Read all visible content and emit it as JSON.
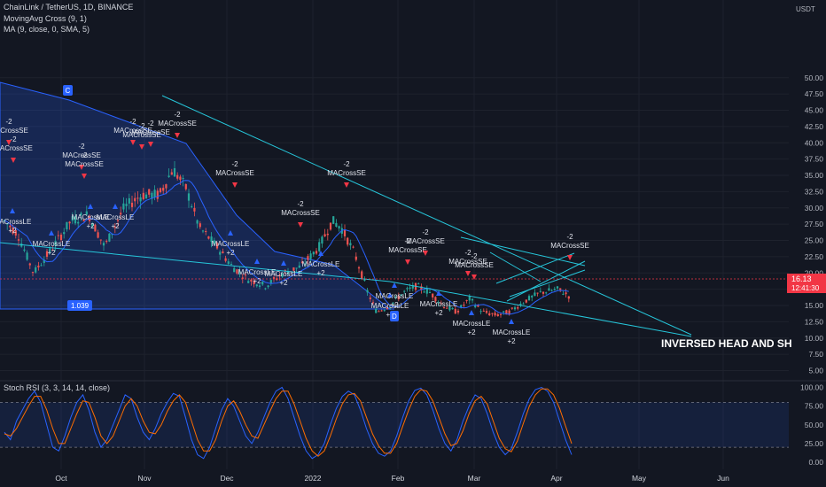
{
  "header": {
    "symbol_line": "ChainLink / TetherUS, 1D, BINANCE",
    "indicator_1": "MovingAvg Cross (9, 1)",
    "indicator_2": "MA (9, close, 0, SMA, 5)",
    "oscillator_label": "Stoch RSI (3, 3, 14, 14, close)",
    "currency": "USDT"
  },
  "price_tag": {
    "price": "16.13",
    "countdown": "12:41:30",
    "color": "#f23645"
  },
  "annotations": {
    "pattern_label": "INVERSED HEAD AND SH",
    "point_c": "C",
    "point_d": "D",
    "level_label": "1.039"
  },
  "colors": {
    "background": "#131722",
    "up_candle": "#26a69a",
    "down_candle": "#ef5350",
    "trendline": "#26c6da",
    "pattern": "#2962ff",
    "ma_line": "#2962ff",
    "stoch_k": "#2962ff",
    "stoch_d": "#ff6d00",
    "signal_short": "#f23645",
    "signal_long": "#2962ff"
  },
  "chart_data": [
    {
      "type": "candlestick",
      "ylabel": "USDT",
      "ylim": [
        4,
        50
      ],
      "y_ticks": [
        "5.00",
        "7.50",
        "10.00",
        "12.50",
        "15.00",
        "17.50",
        "20.00",
        "22.50",
        "25.00",
        "27.50",
        "30.00",
        "32.50",
        "35.00",
        "37.50",
        "40.00",
        "42.50",
        "45.00",
        "47.50",
        "50.00"
      ],
      "x_ticks": [
        "Oct",
        "Nov",
        "Dec",
        "2022",
        "Feb",
        "Mar",
        "Apr",
        "May",
        "Jun"
      ],
      "grid": true,
      "last_price": 16.13,
      "signals": {
        "short_label": "MACrossSE",
        "short_value": "-2",
        "long_label": "MACrossLE",
        "long_value": "+2"
      }
    },
    {
      "type": "line",
      "title": "Stoch RSI (3, 3, 14, 14, close)",
      "ylim": [
        -5,
        105
      ],
      "y_ticks": [
        "0.00",
        "25.00",
        "50.00",
        "75.00",
        "100.00"
      ],
      "bands": [
        20,
        80
      ],
      "series": [
        {
          "name": "%K",
          "values": [
            40,
            30,
            55,
            70,
            85,
            95,
            80,
            50,
            20,
            15,
            35,
            60,
            80,
            90,
            70,
            40,
            20,
            30,
            50,
            70,
            90,
            85,
            60,
            40,
            30,
            45,
            65,
            80,
            92,
            88,
            60,
            30,
            10,
            5,
            20,
            45,
            70,
            85,
            75,
            55,
            35,
            25,
            40,
            60,
            80,
            95,
            100,
            85,
            60,
            35,
            15,
            5,
            10,
            25,
            50,
            72,
            88,
            95,
            90,
            70,
            45,
            25,
            12,
            8,
            15,
            35,
            60,
            82,
            96,
            99,
            90,
            70,
            45,
            25,
            15,
            30,
            55,
            75,
            90,
            85,
            65,
            40,
            20,
            10,
            18,
            40,
            65,
            85,
            97,
            100,
            95,
            80,
            55,
            30,
            10
          ]
        },
        {
          "name": "%D",
          "values": [
            38,
            35,
            45,
            60,
            75,
            88,
            88,
            70,
            45,
            25,
            25,
            45,
            65,
            82,
            80,
            60,
            35,
            25,
            35,
            55,
            75,
            85,
            75,
            55,
            40,
            38,
            50,
            68,
            82,
            90,
            80,
            55,
            30,
            15,
            15,
            30,
            55,
            75,
            82,
            68,
            50,
            35,
            32,
            50,
            68,
            85,
            95,
            95,
            78,
            55,
            32,
            15,
            8,
            15,
            35,
            58,
            78,
            90,
            92,
            82,
            60,
            38,
            22,
            12,
            12,
            25,
            48,
            70,
            88,
            97,
            95,
            82,
            60,
            38,
            22,
            25,
            42,
            65,
            82,
            88,
            78,
            55,
            32,
            18,
            14,
            28,
            52,
            75,
            90,
            98,
            98,
            90,
            72,
            48,
            25
          ]
        }
      ]
    }
  ]
}
